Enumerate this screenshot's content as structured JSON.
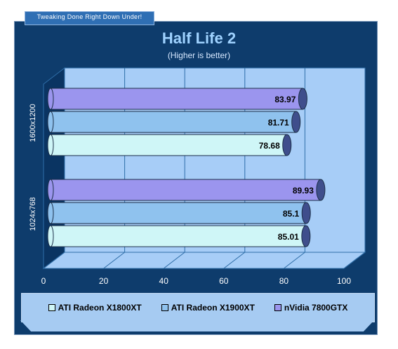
{
  "header": {
    "tab_text": "Tweaking Done Right Down Under!"
  },
  "chart_data": {
    "type": "bar",
    "orientation": "horizontal",
    "title": "Half Life 2",
    "subtitle": "(Higher is better)",
    "categories": [
      "1600x1200",
      "1024x768"
    ],
    "series": [
      {
        "name": "ATI Radeon X1800XT",
        "values": [
          78.68,
          85.01
        ],
        "color": "#cff6f7"
      },
      {
        "name": "ATI Radeon X1900XT",
        "values": [
          81.71,
          85.1
        ],
        "color": "#8fc2ee"
      },
      {
        "name": "nVidia 7800GTX",
        "values": [
          83.97,
          89.93
        ],
        "color": "#9b95ee"
      }
    ],
    "xlim": [
      0,
      100
    ],
    "xticks": [
      "0",
      "20",
      "40",
      "60",
      "80",
      "100"
    ],
    "grid": true,
    "legend_position": "bottom"
  }
}
